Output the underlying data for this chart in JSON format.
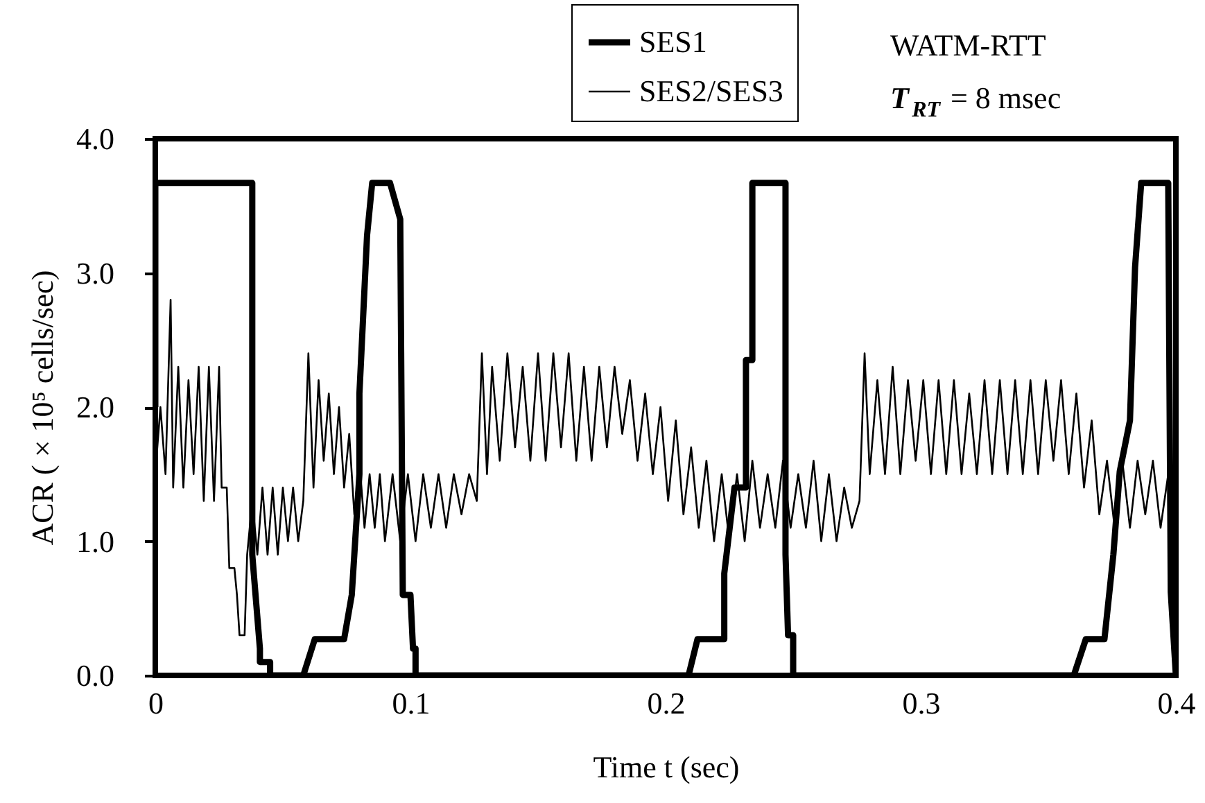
{
  "chart_data": {
    "type": "line",
    "xlabel": "Time t (sec)",
    "ylabel": "ACR ( × 10⁵ cells/sec)",
    "xlim": [
      0,
      0.4
    ],
    "ylim": [
      0,
      4.0
    ],
    "xticks": [
      {
        "value": 0,
        "label": "0"
      },
      {
        "value": 0.1,
        "label": "0.1"
      },
      {
        "value": 0.2,
        "label": "0.2"
      },
      {
        "value": 0.3,
        "label": "0.3"
      },
      {
        "value": 0.4,
        "label": "0.4"
      }
    ],
    "yticks": [
      {
        "value": 0,
        "label": "0.0"
      },
      {
        "value": 1,
        "label": "1.0"
      },
      {
        "value": 2,
        "label": "2.0"
      },
      {
        "value": 3,
        "label": "3.0"
      },
      {
        "value": 4,
        "label": "4.0"
      }
    ],
    "grid": false,
    "legend": "top right",
    "marker": "none",
    "line_style": "solid",
    "annotations": [
      "WATM-RTT",
      "T$_{RT}$ = 8 msec"
    ],
    "series": [
      {
        "name": "SES1",
        "color": "#000000",
        "x": [
          0,
          0,
          0.038,
          0.038,
          0.041,
          0.041,
          0.045,
          0.045,
          0.058,
          0.0625,
          0.074,
          0.077,
          0.08,
          0.08,
          0.083,
          0.085,
          0.092,
          0.096,
          0.097,
          0.1,
          0.101,
          0.102,
          0.102,
          0.209,
          0.2125,
          0.223,
          0.223,
          0.227,
          0.2315,
          0.2315,
          0.234,
          0.234,
          0.247,
          0.247,
          0.248,
          0.25,
          0.25,
          0.36,
          0.3647,
          0.372,
          0.3755,
          0.378,
          0.382,
          0.384,
          0.3864,
          0.397,
          0.398,
          0.4
        ],
        "values": [
          2.0,
          3.67,
          3.67,
          0.9,
          0.2,
          0.1,
          0.1,
          0,
          0,
          0.27,
          0.27,
          0.6,
          1.5,
          2.1,
          3.28,
          3.67,
          3.67,
          3.4,
          0.6,
          0.6,
          0.2,
          0.2,
          0,
          0,
          0.27,
          0.27,
          0.76,
          1.4,
          1.4,
          2.35,
          2.35,
          3.67,
          3.67,
          0.9,
          0.3,
          0.3,
          0,
          0,
          0.27,
          0.27,
          0.9,
          1.52,
          1.9,
          3.04,
          3.67,
          3.67,
          0.62,
          0
        ]
      },
      {
        "name": "SES2/SES3",
        "color": "#000000",
        "x": [
          0,
          0.002,
          0.004,
          0.006,
          0.007,
          0.009,
          0.011,
          0.013,
          0.015,
          0.017,
          0.019,
          0.021,
          0.023,
          0.025,
          0.026,
          0.028,
          0.029,
          0.031,
          0.032,
          0.033,
          0.035,
          0.036,
          0.038,
          0.04,
          0.042,
          0.044,
          0.046,
          0.048,
          0.05,
          0.052,
          0.054,
          0.056,
          0.058,
          0.06,
          0.062,
          0.064,
          0.066,
          0.068,
          0.07,
          0.072,
          0.074,
          0.076,
          0.078,
          0.08,
          0.082,
          0.084,
          0.086,
          0.088,
          0.09,
          0.093,
          0.096,
          0.099,
          0.102,
          0.105,
          0.108,
          0.111,
          0.114,
          0.117,
          0.12,
          0.123,
          0.126,
          0.128,
          0.13,
          0.132,
          0.135,
          0.138,
          0.141,
          0.144,
          0.147,
          0.15,
          0.153,
          0.156,
          0.159,
          0.162,
          0.165,
          0.168,
          0.171,
          0.174,
          0.177,
          0.18,
          0.183,
          0.186,
          0.189,
          0.192,
          0.195,
          0.198,
          0.201,
          0.204,
          0.207,
          0.21,
          0.213,
          0.216,
          0.219,
          0.222,
          0.225,
          0.228,
          0.231,
          0.234,
          0.237,
          0.24,
          0.243,
          0.246,
          0.249,
          0.252,
          0.255,
          0.258,
          0.261,
          0.264,
          0.267,
          0.27,
          0.273,
          0.276,
          0.278,
          0.28,
          0.283,
          0.286,
          0.289,
          0.292,
          0.295,
          0.298,
          0.301,
          0.304,
          0.307,
          0.31,
          0.313,
          0.316,
          0.319,
          0.322,
          0.325,
          0.328,
          0.331,
          0.334,
          0.337,
          0.34,
          0.343,
          0.346,
          0.349,
          0.352,
          0.355,
          0.358,
          0.361,
          0.364,
          0.367,
          0.37,
          0.373,
          0.376,
          0.379,
          0.382,
          0.385,
          0.388,
          0.391,
          0.394,
          0.397,
          0.4
        ],
        "values": [
          1.5,
          2.0,
          1.5,
          2.8,
          1.4,
          2.3,
          1.4,
          2.2,
          1.5,
          2.3,
          1.3,
          2.3,
          1.3,
          2.3,
          1.4,
          1.4,
          0.8,
          0.8,
          0.6,
          0.3,
          0.3,
          0.9,
          1.3,
          0.9,
          1.4,
          0.9,
          1.4,
          0.9,
          1.4,
          1.0,
          1.4,
          1.0,
          1.3,
          2.4,
          1.4,
          2.2,
          1.6,
          2.1,
          1.5,
          2.0,
          1.4,
          1.8,
          1.2,
          1.6,
          1.1,
          1.5,
          1.1,
          1.5,
          1.0,
          1.5,
          1.0,
          1.5,
          1.0,
          1.5,
          1.1,
          1.5,
          1.1,
          1.5,
          1.2,
          1.5,
          1.3,
          2.4,
          1.5,
          2.3,
          1.6,
          2.4,
          1.7,
          2.3,
          1.6,
          2.4,
          1.6,
          2.4,
          1.7,
          2.4,
          1.6,
          2.3,
          1.6,
          2.3,
          1.7,
          2.3,
          1.8,
          2.2,
          1.6,
          2.1,
          1.5,
          2.0,
          1.3,
          1.9,
          1.2,
          1.7,
          1.1,
          1.6,
          1.0,
          1.5,
          1.0,
          1.5,
          1.0,
          1.6,
          1.1,
          1.5,
          1.1,
          1.6,
          1.1,
          1.5,
          1.1,
          1.6,
          1.0,
          1.5,
          1.0,
          1.4,
          1.1,
          1.3,
          2.4,
          1.5,
          2.2,
          1.5,
          2.3,
          1.5,
          2.2,
          1.6,
          2.2,
          1.5,
          2.2,
          1.5,
          2.2,
          1.5,
          2.1,
          1.5,
          2.2,
          1.5,
          2.2,
          1.5,
          2.2,
          1.5,
          2.2,
          1.5,
          2.2,
          1.6,
          2.2,
          1.5,
          2.1,
          1.4,
          1.9,
          1.2,
          1.6,
          1.1,
          1.6,
          1.1,
          1.6,
          1.2,
          1.6,
          1.1,
          1.5,
          1.1
        ]
      }
    ]
  }
}
